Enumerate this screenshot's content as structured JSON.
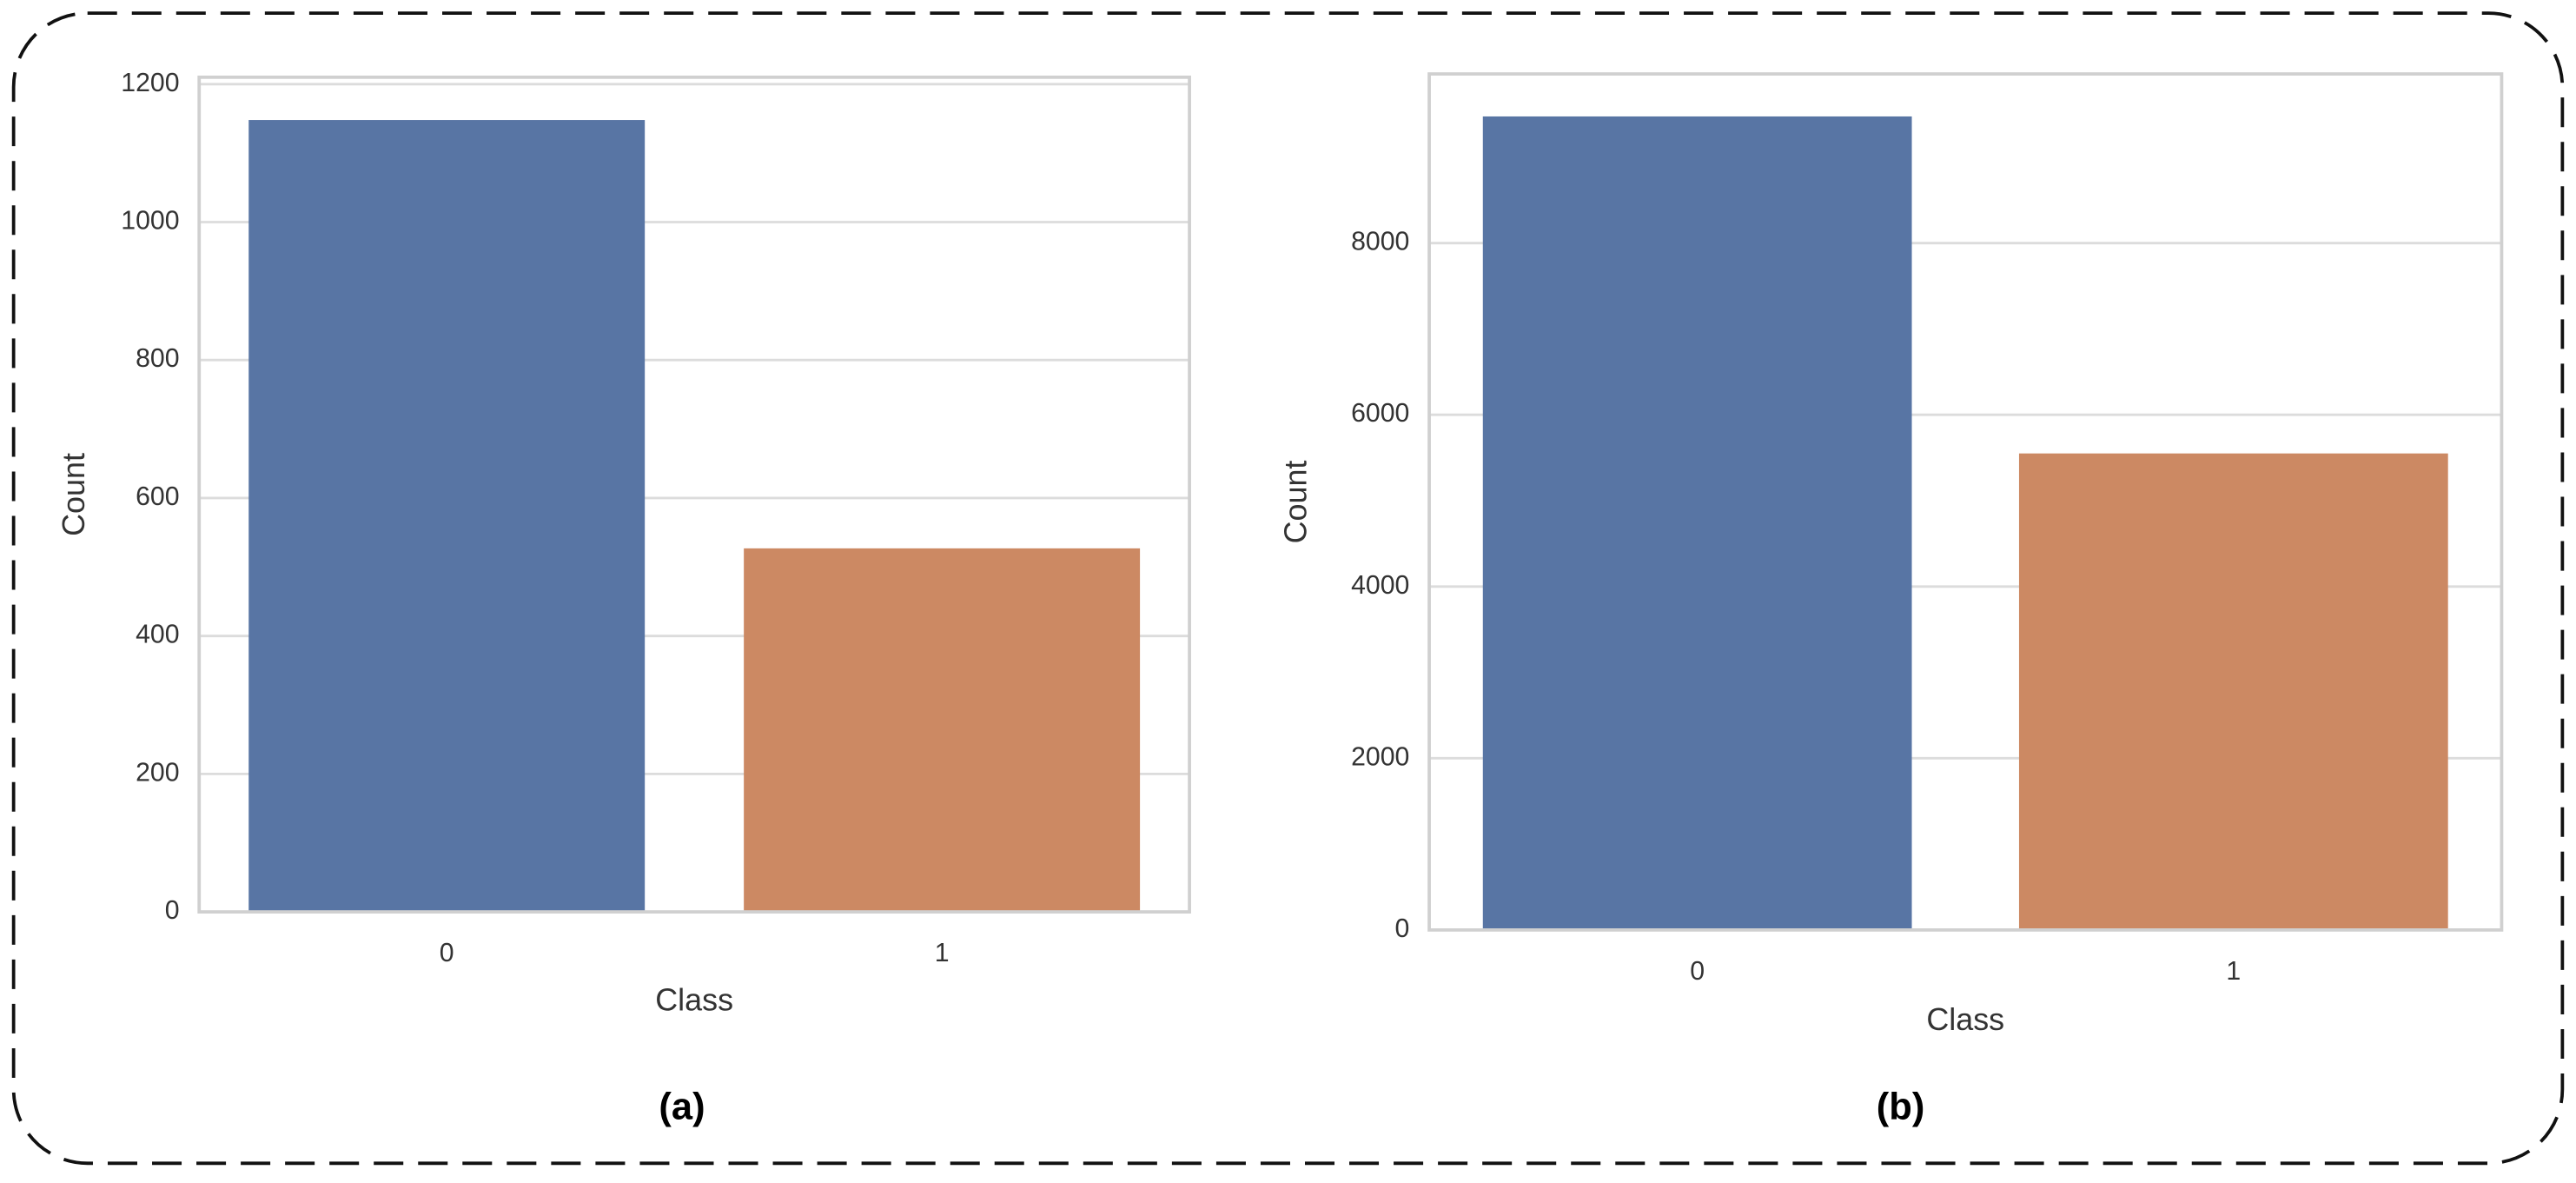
{
  "chart_data": [
    {
      "type": "bar",
      "caption": "(a)",
      "x_label": "Class",
      "y_label": "Count",
      "categories": [
        "0",
        "1"
      ],
      "values": [
        1148,
        527
      ],
      "colors": [
        "#5875a4",
        "#cc8963"
      ],
      "ylim": [
        0,
        1210
      ],
      "yticks": [
        0,
        200,
        400,
        600,
        800,
        1000,
        1200
      ],
      "grid": true
    },
    {
      "type": "bar",
      "caption": "(b)",
      "x_label": "Class",
      "y_label": "Count",
      "categories": [
        "0",
        "1"
      ],
      "values": [
        9475,
        5550
      ],
      "colors": [
        "#5875a4",
        "#cc8963"
      ],
      "ylim": [
        0,
        9970
      ],
      "yticks": [
        0,
        2000,
        4000,
        6000,
        8000
      ],
      "grid": true
    }
  ]
}
